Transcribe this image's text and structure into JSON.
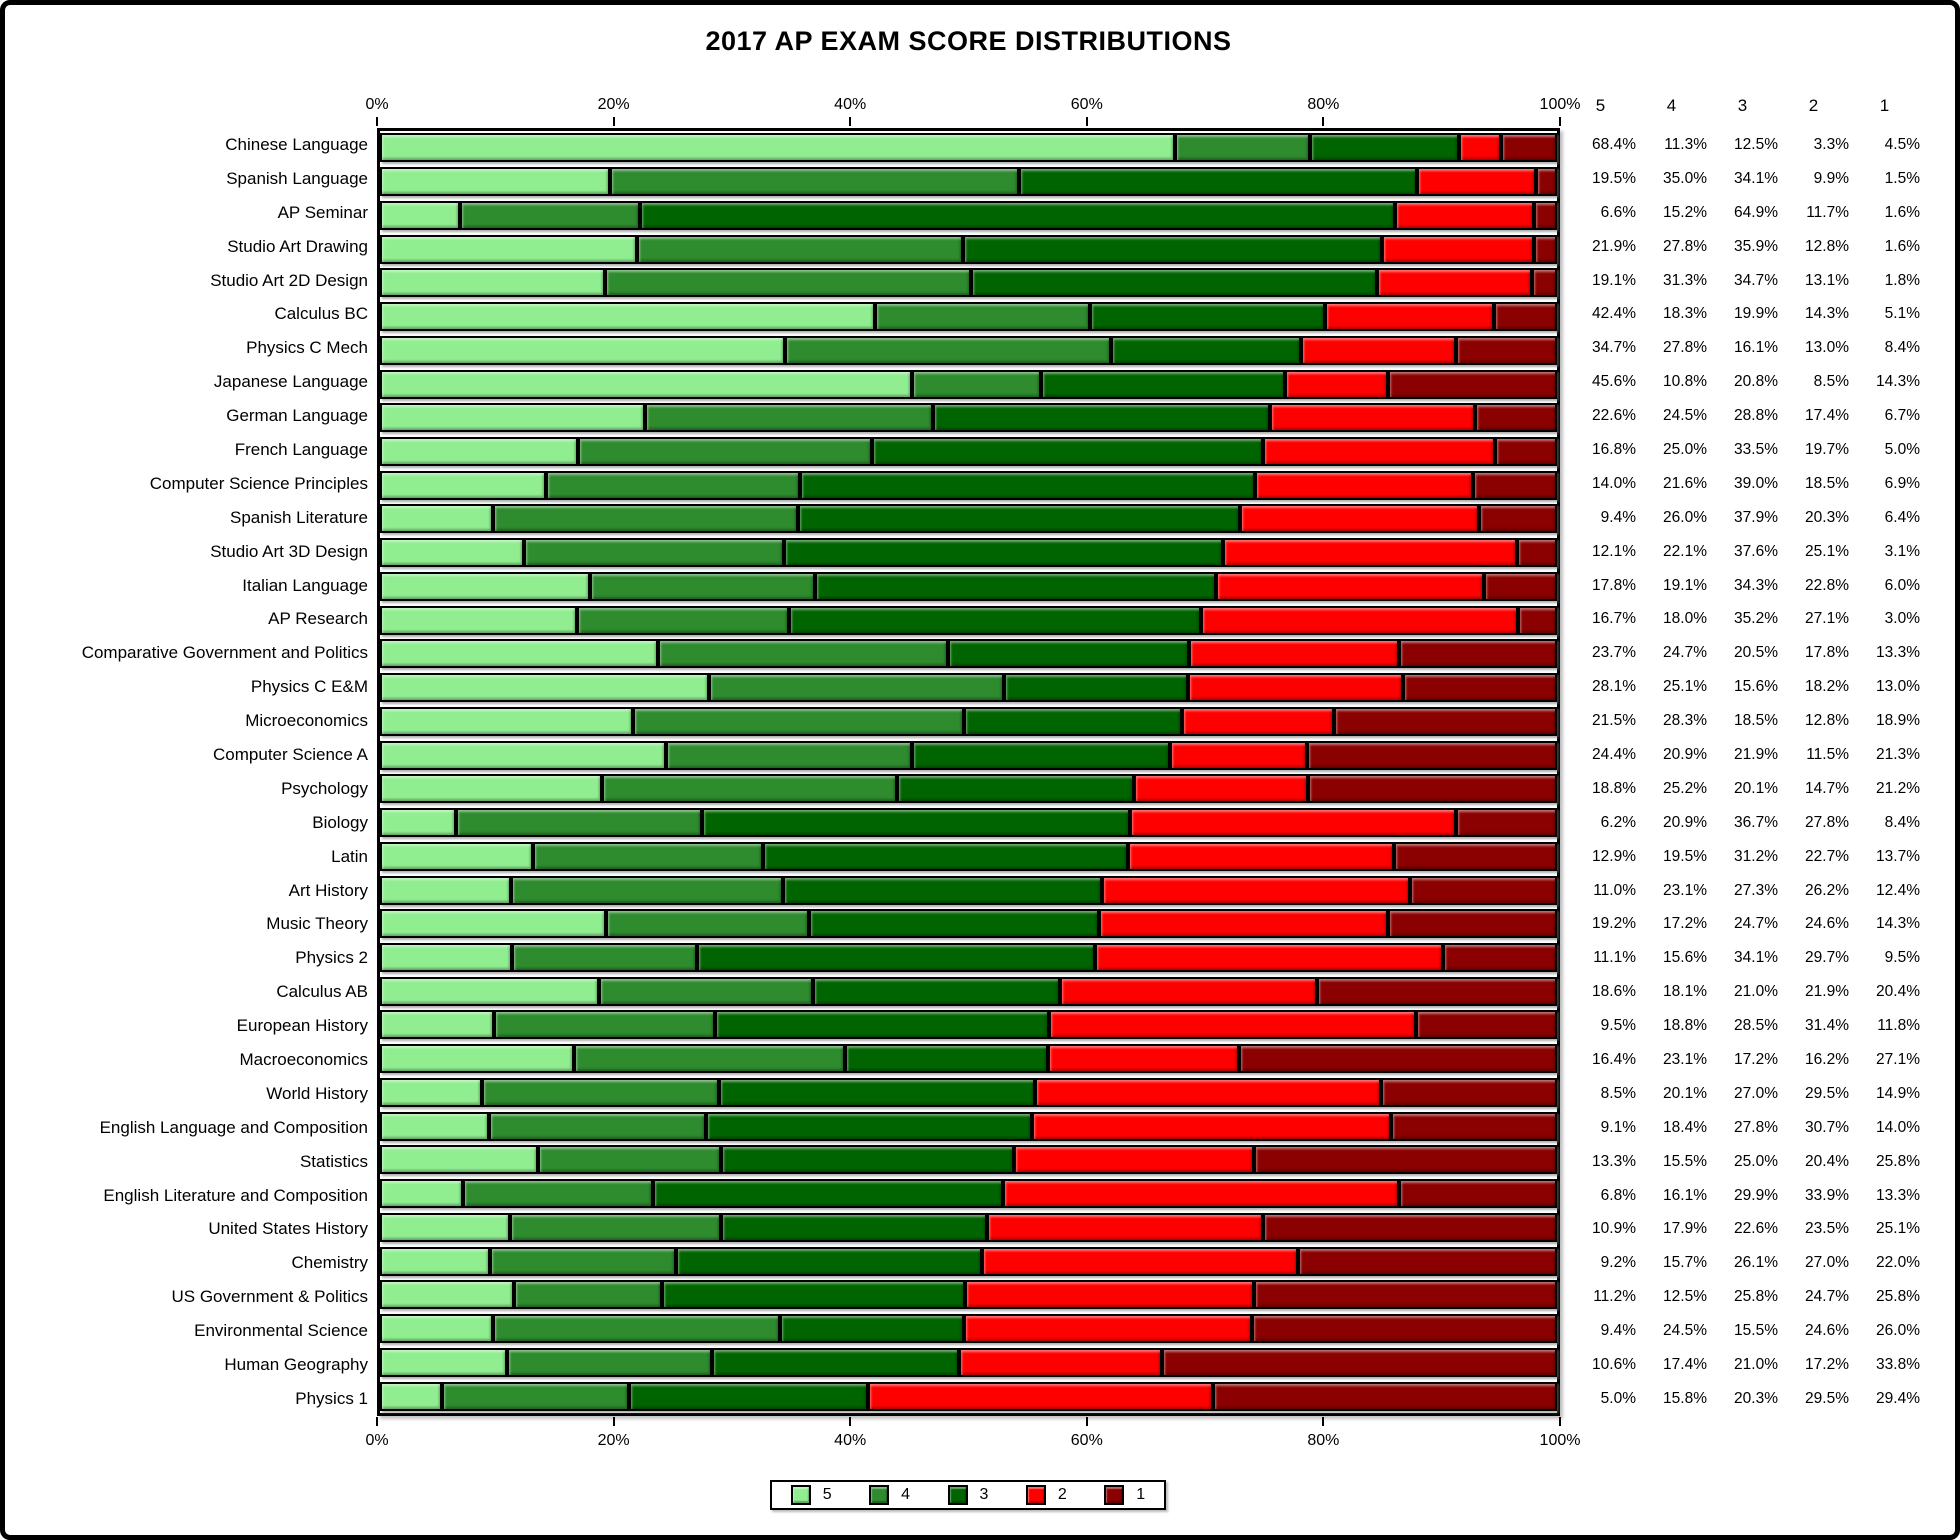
{
  "title": "2017 AP EXAM SCORE DISTRIBUTIONS",
  "axis": {
    "tick_positions": [
      0,
      20,
      40,
      60,
      80,
      100
    ],
    "tick_labels": [
      "0%",
      "20%",
      "40%",
      "60%",
      "80%",
      "100%"
    ]
  },
  "table_headers": [
    "5",
    "4",
    "3",
    "2",
    "1"
  ],
  "legend": {
    "items": [
      {
        "label": "5",
        "color": "#90EE90"
      },
      {
        "label": "4",
        "color": "#2E8B2E"
      },
      {
        "label": "3",
        "color": "#006400"
      },
      {
        "label": "2",
        "color": "#FF0000"
      },
      {
        "label": "1",
        "color": "#8B0000"
      }
    ]
  },
  "colors": {
    "score5": "#90EE90",
    "score4": "#2E8B2E",
    "score3": "#006400",
    "score2": "#FF0000",
    "score1": "#8B0000",
    "border": "#000000",
    "background": "#FFFFFF"
  },
  "chart_data": {
    "type": "bar",
    "stacked": true,
    "orientation": "horizontal",
    "title": "2017 AP EXAM SCORE DISTRIBUTIONS",
    "xlabel": "",
    "ylabel": "",
    "xlim": [
      0,
      100
    ],
    "grid": false,
    "legend_position": "bottom",
    "series_names": [
      "5",
      "4",
      "3",
      "2",
      "1"
    ],
    "series_colors": [
      "#90EE90",
      "#2E8B2E",
      "#006400",
      "#FF0000",
      "#8B0000"
    ],
    "categories": [
      "Chinese Language",
      "Spanish Language",
      "AP Seminar",
      "Studio Art Drawing",
      "Studio Art 2D Design",
      "Calculus BC",
      "Physics C Mech",
      "Japanese Language",
      "German Language",
      "French Language",
      "Computer Science Principles",
      "Spanish Literature",
      "Studio Art 3D Design",
      "Italian Language",
      "AP Research",
      "Comparative Government and Politics",
      "Physics C E&M",
      "Microeconomics",
      "Computer Science A",
      "Psychology",
      "Biology",
      "Latin",
      "Art History",
      "Music Theory",
      "Physics 2",
      "Calculus AB",
      "European History",
      "Macroeconomics",
      "World History",
      "English Language and Composition",
      "Statistics",
      "English Literature and Composition",
      "United States History",
      "Chemistry",
      "US Government & Politics",
      "Environmental Science",
      "Human Geography",
      "Physics 1"
    ],
    "values": [
      [
        68.4,
        11.3,
        12.5,
        3.3,
        4.5
      ],
      [
        19.5,
        35.0,
        34.1,
        9.9,
        1.5
      ],
      [
        6.6,
        15.2,
        64.9,
        11.7,
        1.6
      ],
      [
        21.9,
        27.8,
        35.9,
        12.8,
        1.6
      ],
      [
        19.1,
        31.3,
        34.7,
        13.1,
        1.8
      ],
      [
        42.4,
        18.3,
        19.9,
        14.3,
        5.1
      ],
      [
        34.7,
        27.8,
        16.1,
        13.0,
        8.4
      ],
      [
        45.6,
        10.8,
        20.8,
        8.5,
        14.3
      ],
      [
        22.6,
        24.5,
        28.8,
        17.4,
        6.7
      ],
      [
        16.8,
        25.0,
        33.5,
        19.7,
        5.0
      ],
      [
        14.0,
        21.6,
        39.0,
        18.5,
        6.9
      ],
      [
        9.4,
        26.0,
        37.9,
        20.3,
        6.4
      ],
      [
        12.1,
        22.1,
        37.6,
        25.1,
        3.1
      ],
      [
        17.8,
        19.1,
        34.3,
        22.8,
        6.0
      ],
      [
        16.7,
        18.0,
        35.2,
        27.1,
        3.0
      ],
      [
        23.7,
        24.7,
        20.5,
        17.8,
        13.3
      ],
      [
        28.1,
        25.1,
        15.6,
        18.2,
        13.0
      ],
      [
        21.5,
        28.3,
        18.5,
        12.8,
        18.9
      ],
      [
        24.4,
        20.9,
        21.9,
        11.5,
        21.3
      ],
      [
        18.8,
        25.2,
        20.1,
        14.7,
        21.2
      ],
      [
        6.2,
        20.9,
        36.7,
        27.8,
        8.4
      ],
      [
        12.9,
        19.5,
        31.2,
        22.7,
        13.7
      ],
      [
        11.0,
        23.1,
        27.3,
        26.2,
        12.4
      ],
      [
        19.2,
        17.2,
        24.7,
        24.6,
        14.3
      ],
      [
        11.1,
        15.6,
        34.1,
        29.7,
        9.5
      ],
      [
        18.6,
        18.1,
        21.0,
        21.9,
        20.4
      ],
      [
        9.5,
        18.8,
        28.5,
        31.4,
        11.8
      ],
      [
        16.4,
        23.1,
        17.2,
        16.2,
        27.1
      ],
      [
        8.5,
        20.1,
        27.0,
        29.5,
        14.9
      ],
      [
        9.1,
        18.4,
        27.8,
        30.7,
        14.0
      ],
      [
        13.3,
        15.5,
        25.0,
        20.4,
        25.8
      ],
      [
        6.8,
        16.1,
        29.9,
        33.9,
        13.3
      ],
      [
        10.9,
        17.9,
        22.6,
        23.5,
        25.1
      ],
      [
        9.2,
        15.7,
        26.1,
        27.0,
        22.0
      ],
      [
        11.2,
        12.5,
        25.8,
        24.7,
        25.8
      ],
      [
        9.4,
        24.5,
        15.5,
        24.6,
        26.0
      ],
      [
        10.6,
        17.4,
        21.0,
        17.2,
        33.8
      ],
      [
        5.0,
        15.8,
        20.3,
        29.5,
        29.4
      ]
    ]
  }
}
